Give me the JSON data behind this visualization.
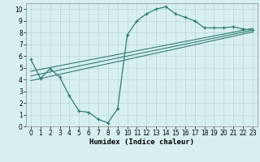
{
  "main_x": [
    0,
    1,
    2,
    3,
    4,
    5,
    6,
    7,
    8,
    9,
    10,
    11,
    12,
    13,
    14,
    15,
    16,
    17,
    18,
    19,
    20,
    21,
    22,
    23
  ],
  "main_y": [
    5.7,
    4.1,
    4.9,
    4.2,
    2.6,
    1.3,
    1.2,
    0.6,
    0.3,
    1.5,
    7.8,
    9.0,
    9.6,
    10.0,
    10.2,
    9.6,
    9.3,
    9.0,
    8.4,
    8.4,
    8.4,
    8.5,
    8.3,
    8.2
  ],
  "line1_x": [
    0,
    23
  ],
  "line1_y": [
    3.9,
    8.05
  ],
  "line2_x": [
    0,
    23
  ],
  "line2_y": [
    4.3,
    8.2
  ],
  "line3_x": [
    0,
    23
  ],
  "line3_y": [
    4.7,
    8.35
  ],
  "bg_color": "#d8eff0",
  "line_color": "#2e7d6e",
  "grid_color": "#b8d8d8",
  "xlabel": "Humidex (Indice chaleur)",
  "xlim": [
    -0.5,
    23.5
  ],
  "ylim": [
    0,
    10.5
  ],
  "xticks": [
    0,
    1,
    2,
    3,
    4,
    5,
    6,
    7,
    8,
    9,
    10,
    11,
    12,
    13,
    14,
    15,
    16,
    17,
    18,
    19,
    20,
    21,
    22,
    23
  ],
  "yticks": [
    0,
    1,
    2,
    3,
    4,
    5,
    6,
    7,
    8,
    9,
    10
  ],
  "xlabel_fontsize": 6.5,
  "tick_fontsize": 5.5
}
